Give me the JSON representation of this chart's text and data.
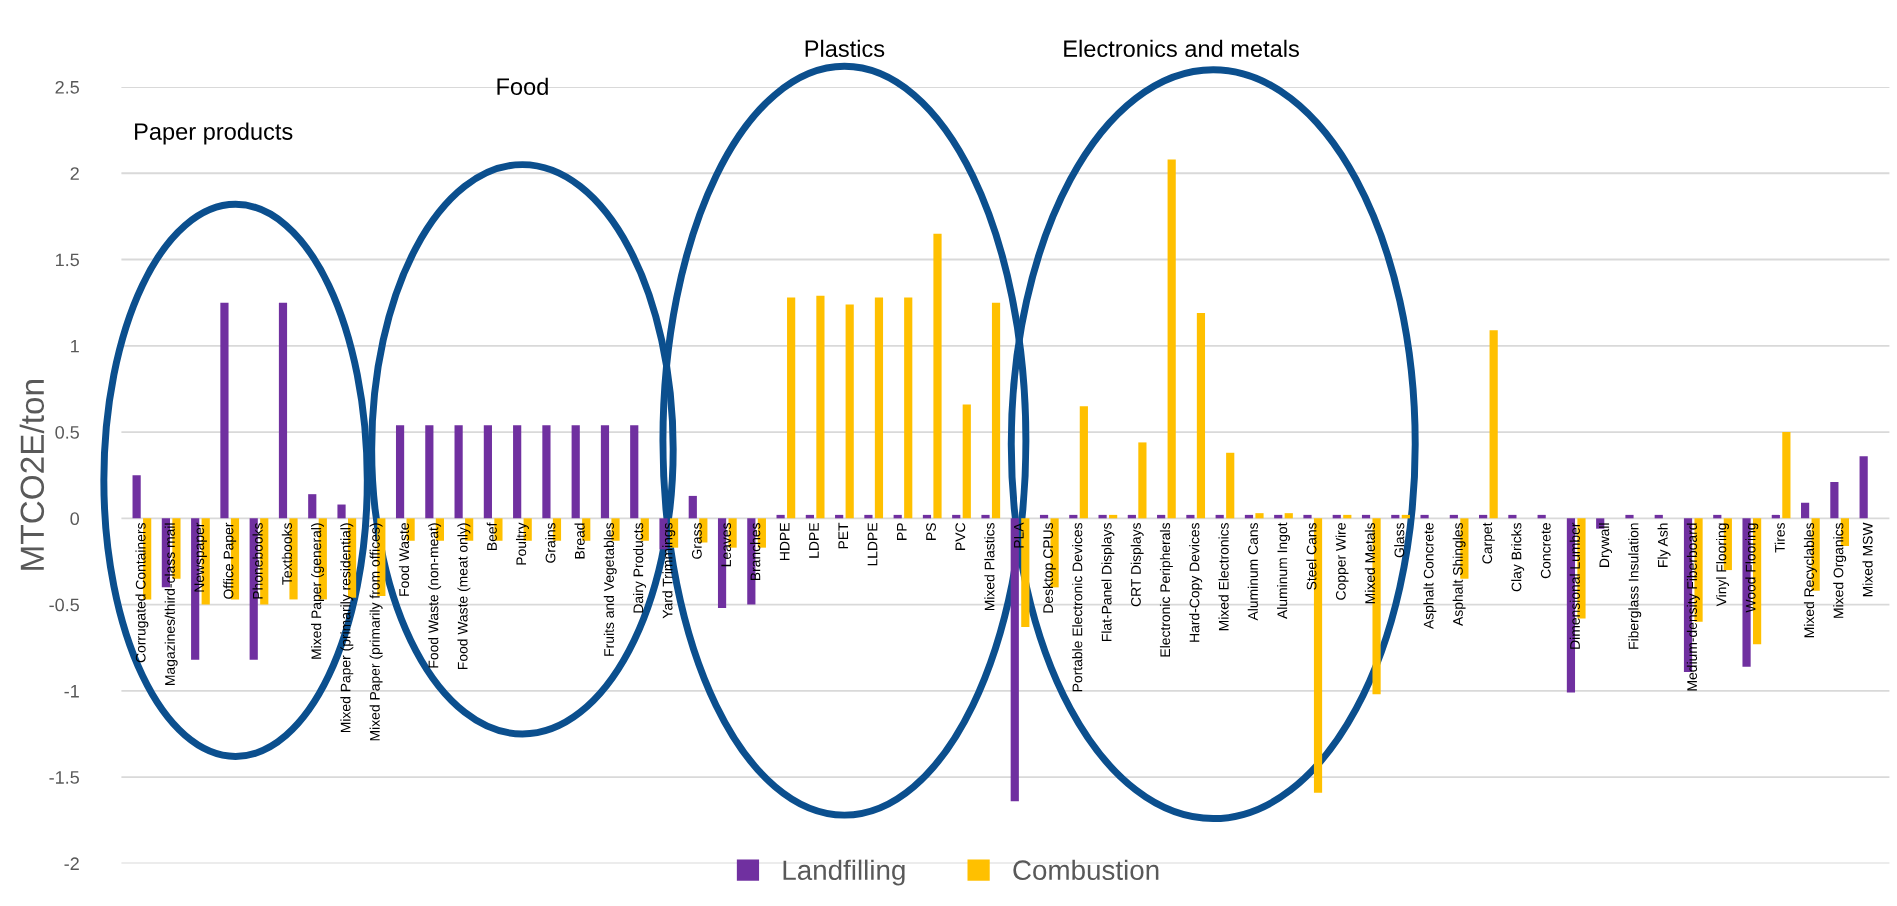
{
  "chart_data": {
    "type": "bar",
    "ylabel": "MTCO2E/ton",
    "categories": [
      "Corrugated Containers",
      "Magazines/third-class mail",
      "Newspaper",
      "Office Paper",
      "Phonebooks",
      "Textbooks",
      "Mixed Paper (general)",
      "Mixed Paper (primarily residential)",
      "Mixed Paper (primarily from offices)",
      "Food Waste",
      "Food Waste (non-meat)",
      "Food Waste (meat only)",
      "Beef",
      "Poultry",
      "Grains",
      "Bread",
      "Fruits and Vegetables",
      "Dairy Products",
      "Yard Trimmings",
      "Grass",
      "Leaves",
      "Branches",
      "HDPE",
      "LDPE",
      "PET",
      "LLDPE",
      "PP",
      "PS",
      "PVC",
      "Mixed Plastics",
      "PLA",
      "Desktop CPUs",
      "Portable Electronic Devices",
      "Flat-Panel Displays",
      "CRT Displays",
      "Electronic Peripherals",
      "Hard-Copy Devices",
      "Mixed Electronics",
      "Aluminum Cans",
      "Aluminum Ingot",
      "Steel Cans",
      "Copper Wire",
      "Mixed Metals",
      "Glass",
      "Asphalt Concrete",
      "Asphalt Shingles",
      "Carpet",
      "Clay Bricks",
      "Concrete",
      "Dimensional Lumber",
      "Drywall",
      "Fiberglass Insulation",
      "Fly Ash",
      "Medium-density Fiberboard",
      "Vinyl Flooring",
      "Wood Flooring",
      "Tires",
      "Mixed Recyclables",
      "Mixed Organics",
      "Mixed MSW"
    ],
    "series": [
      {
        "name": "Landfilling",
        "color": "#7030a0",
        "values": [
          0.25,
          -0.4,
          -0.82,
          1.25,
          -0.82,
          1.25,
          0.14,
          0.08,
          null,
          0.54,
          0.54,
          0.54,
          0.54,
          0.54,
          0.54,
          0.54,
          0.54,
          0.54,
          -0.18,
          0.13,
          -0.52,
          -0.5,
          0.02,
          0.02,
          0.02,
          0.02,
          0.02,
          0.02,
          0.02,
          0.02,
          -1.64,
          0.02,
          0.02,
          0.02,
          0.02,
          0.02,
          0.02,
          0.02,
          0.02,
          0.02,
          0.02,
          0.02,
          0.02,
          0.02,
          0.02,
          0.02,
          0.02,
          0.02,
          0.02,
          -1.01,
          -0.06,
          0.02,
          0.02,
          -0.89,
          0.02,
          -0.86,
          0.02,
          0.09,
          0.21,
          0.36
        ]
      },
      {
        "name": "Combustion",
        "color": "#ffc000",
        "values": [
          -0.47,
          -0.35,
          -0.5,
          -0.47,
          -0.5,
          -0.47,
          -0.47,
          -0.46,
          -0.45,
          -0.13,
          -0.13,
          -0.13,
          -0.13,
          -0.13,
          -0.13,
          -0.13,
          -0.13,
          -0.13,
          -0.17,
          -0.14,
          -0.17,
          -0.17,
          1.28,
          1.29,
          1.24,
          1.28,
          1.28,
          1.65,
          0.66,
          1.25,
          -0.63,
          -0.4,
          0.65,
          0.02,
          0.44,
          2.08,
          1.19,
          0.38,
          0.03,
          0.03,
          -1.59,
          0.02,
          -1.02,
          0.02,
          null,
          -0.35,
          1.09,
          null,
          null,
          -0.58,
          null,
          null,
          null,
          -0.6,
          -0.3,
          -0.73,
          0.5,
          -0.42,
          -0.16,
          0.0
        ]
      }
    ],
    "ylim": [
      -2,
      2.5
    ],
    "yticks": [
      -2,
      -1.5,
      -1,
      -0.5,
      0,
      0.5,
      1,
      1.5,
      2,
      2.5
    ],
    "grid": "y",
    "legend": "bottom",
    "annotations": [
      "Paper products",
      "Food",
      "Plastics",
      "Electronics and metals"
    ]
  }
}
